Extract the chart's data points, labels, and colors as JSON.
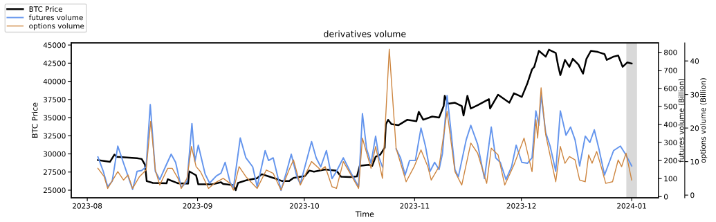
{
  "chart_data": {
    "type": "line",
    "title": "derivatives volume",
    "xlabel": "Time",
    "ylabel": "BTC Price",
    "y2label": "futures volume (Billion)",
    "y3label": "options volume (Billion)",
    "xlim": [
      "2023-07-27T12:00",
      "2024-01-08T12:00"
    ],
    "xticks": [
      {
        "value": "2023-08-01",
        "label": "2023-08"
      },
      {
        "value": "2023-09-01",
        "label": "2023-09"
      },
      {
        "value": "2023-10-01",
        "label": "2023-10"
      },
      {
        "value": "2023-11-01",
        "label": "2023-11"
      },
      {
        "value": "2023-12-01",
        "label": "2023-12"
      },
      {
        "value": "2024-01-01",
        "label": "2024-01"
      }
    ],
    "ylim": [
      23950,
      45300
    ],
    "yticks": [
      25000,
      27500,
      30000,
      32500,
      35000,
      37500,
      40000,
      42500,
      45000
    ],
    "y2lim": [
      -6.5,
      852
    ],
    "y2ticks": [
      0,
      100,
      200,
      300,
      400,
      500,
      600,
      700,
      800
    ],
    "y3lim": [
      -0.8,
      45.4
    ],
    "y3ticks": [
      0,
      10,
      20,
      30,
      40
    ],
    "legend": "top left",
    "grid": false,
    "marker": "none",
    "line_style": "solid",
    "bands": [
      {
        "axis": "x",
        "from": "2023-12-30T12:00",
        "to": "2024-01-02T12:00",
        "color": "#d9d9d9"
      }
    ],
    "series": [
      {
        "name": "BTC Price",
        "color": "#000000",
        "axis": "y",
        "x": [
          "2023-08-04T00:00",
          "2023-08-07T09:00",
          "2023-08-08T15:00",
          "2023-08-09T07:00",
          "2023-08-15T00:00",
          "2023-08-16T07:00",
          "2023-08-17T06:00",
          "2023-08-17T17:00",
          "2023-08-19T11:00",
          "2023-08-23T07:00",
          "2023-08-23T15:00",
          "2023-08-26T12:00",
          "2023-08-29T08:00",
          "2023-08-29T16:00",
          "2023-08-31T14:00",
          "2023-09-01T05:00",
          "2023-09-05T01:00",
          "2023-09-07T14:00",
          "2023-09-08T05:00",
          "2023-09-11T02:00",
          "2023-09-11T17:00",
          "2023-09-12T09:00",
          "2023-09-14T14:00",
          "2023-09-17T18:00",
          "2023-09-19T01:00",
          "2023-09-20T23:00",
          "2023-09-22T21:00",
          "2023-09-24T19:00",
          "2023-09-26T17:00",
          "2023-09-27T23:00",
          "2023-10-01T04:00",
          "2023-10-02T10:00",
          "2023-10-03T17:00",
          "2023-10-06T21:00",
          "2023-10-10T01:00",
          "2023-10-11T08:00",
          "2023-10-13T21:00",
          "2023-10-15T19:00",
          "2023-10-16T14:00",
          "2023-10-19T03:00",
          "2023-10-20T02:00",
          "2023-10-21T01:00",
          "2023-10-22T08:00",
          "2023-10-23T14:00",
          "2023-10-23T22:00",
          "2023-10-24T13:00",
          "2023-10-25T12:00",
          "2023-10-27T10:00",
          "2023-10-29T23:00",
          "2023-11-01T12:00",
          "2023-11-02T04:00",
          "2023-11-03T10:00",
          "2023-11-05T23:00",
          "2023-11-07T21:00",
          "2023-11-09T04:00",
          "2023-11-09T11:00",
          "2023-11-10T10:00",
          "2023-11-12T08:00",
          "2023-11-14T06:00",
          "2023-11-14T18:00",
          "2023-11-15T20:00",
          "2023-11-16T19:00",
          "2023-11-18T17:00",
          "2023-11-21T21:00",
          "2023-11-22T05:00",
          "2023-11-24T11:00",
          "2023-11-27T15:00",
          "2023-11-28T22:00",
          "2023-12-01T03:00",
          "2023-12-02T17:00",
          "2023-12-04T00:00",
          "2023-12-04T15:00",
          "2023-12-05T22:00",
          "2023-12-07T20:00",
          "2023-12-08T18:00",
          "2023-12-10T16:00",
          "2023-12-11T08:00",
          "2023-12-11T23:00",
          "2023-12-13T06:00",
          "2023-12-14T12:00",
          "2023-12-15T11:00",
          "2023-12-17T01:00",
          "2023-12-18T08:00",
          "2023-12-19T07:00",
          "2023-12-20T13:00",
          "2023-12-22T11:00",
          "2023-12-24T09:00",
          "2023-12-25T00:00",
          "2023-12-26T22:00",
          "2023-12-28T05:00",
          "2023-12-29T11:00",
          "2023-12-30T18:00",
          "2024-01-01T00:00"
        ],
        "values": [
          29150,
          28900,
          29900,
          29600,
          29400,
          29300,
          28500,
          26250,
          26000,
          25950,
          26500,
          25950,
          25900,
          27600,
          27050,
          25800,
          25800,
          26100,
          25850,
          25700,
          25000,
          26000,
          26350,
          26650,
          27200,
          26900,
          26600,
          26250,
          26250,
          26700,
          26950,
          27700,
          27550,
          27850,
          27700,
          26850,
          26800,
          26900,
          28350,
          28500,
          28350,
          29600,
          29900,
          30850,
          34050,
          34700,
          34100,
          33950,
          34700,
          34500,
          35800,
          34700,
          35150,
          35000,
          36600,
          38000,
          36900,
          37050,
          36600,
          35300,
          38000,
          36250,
          36700,
          37550,
          36250,
          38150,
          37050,
          38350,
          37850,
          39750,
          41650,
          42000,
          44200,
          43400,
          44350,
          43900,
          42150,
          40850,
          42950,
          42000,
          43100,
          42300,
          41050,
          43100,
          44200,
          44050,
          43750,
          42950,
          43400,
          43550,
          42000,
          42600,
          42450
        ]
      },
      {
        "name": "futures volume",
        "color": "#6495ed",
        "axis": "y2",
        "x": [
          "2023-08-04T00:00",
          "2023-08-05T12:00",
          "2023-08-06T18:00",
          "2023-08-08T00:00",
          "2023-08-09T14:00",
          "2023-08-11T05:00",
          "2023-08-13T18:00",
          "2023-08-15T00:00",
          "2023-08-16T07:00",
          "2023-08-17T13:00",
          "2023-08-18T17:00",
          "2023-08-20T03:00",
          "2023-08-21T09:00",
          "2023-08-22T23:00",
          "2023-08-24T14:00",
          "2023-08-25T20:00",
          "2023-08-27T10:00",
          "2023-08-29T01:00",
          "2023-08-30T10:00",
          "2023-08-31T06:00",
          "2023-09-01T05:00",
          "2023-09-03T03:00",
          "2023-09-04T09:00",
          "2023-09-06T07:00",
          "2023-09-07T14:00",
          "2023-09-08T18:00",
          "2023-09-10T03:00",
          "2023-09-11T02:00",
          "2023-09-13T00:00",
          "2023-09-14T14:00",
          "2023-09-16T12:00",
          "2023-09-17T18:00",
          "2023-09-20T00:00",
          "2023-09-20T23:00",
          "2023-09-22T06:00",
          "2023-09-24T11:00",
          "2023-09-26T01:00",
          "2023-09-27T08:00",
          "2023-09-28T22:00",
          "2023-09-29T21:00",
          "2023-10-03T01:00",
          "2023-10-04T08:00",
          "2023-10-05T15:00",
          "2023-10-07T05:00",
          "2023-10-08T19:00",
          "2023-10-10T01:00",
          "2023-10-11T23:00",
          "2023-10-13T21:00",
          "2023-10-16T06:00",
          "2023-10-17T08:00",
          "2023-10-18T12:00",
          "2023-10-19T18:00",
          "2023-10-21T01:00",
          "2023-10-22T00:00",
          "2023-10-22T23:00",
          "2023-10-24T21:00",
          "2023-10-26T19:00",
          "2023-10-28T01:00",
          "2023-10-29T08:00",
          "2023-10-30T14:00",
          "2023-11-01T05:00",
          "2023-11-02T19:00",
          "2023-11-04T01:00",
          "2023-11-05T08:00",
          "2023-11-06T15:00",
          "2023-11-07T21:00",
          "2023-11-08T20:00",
          "2023-11-10T03:00",
          "2023-11-11T01:00",
          "2023-11-12T08:00",
          "2023-11-13T07:00",
          "2023-11-15T12:00",
          "2023-11-16T19:00",
          "2023-11-18T17:00",
          "2023-11-20T15:00",
          "2023-11-22T13:00",
          "2023-11-23T19:00",
          "2023-11-25T02:00",
          "2023-11-26T16:00",
          "2023-11-28T06:00",
          "2023-11-29T13:00",
          "2023-12-01T03:00",
          "2023-12-02T17:00",
          "2023-12-04T00:00",
          "2023-12-05T02:00",
          "2023-12-05T22:00",
          "2023-12-06T13:00",
          "2023-12-07T20:00",
          "2023-12-09T02:00",
          "2023-12-10T16:00",
          "2023-12-11T23:00",
          "2023-12-13T13:00",
          "2023-12-14T20:00",
          "2023-12-16T02:00",
          "2023-12-17T09:00",
          "2023-12-18T23:00",
          "2023-12-20T06:00",
          "2023-12-21T12:00",
          "2023-12-22T19:00",
          "2023-12-24T09:00",
          "2023-12-26T22:00",
          "2023-12-28T20:00",
          "2023-12-30T03:00",
          "2024-01-01T00:00"
        ],
        "values": [
          220,
          140,
          55,
          85,
          280,
          185,
          40,
          140,
          145,
          165,
          510,
          140,
          95,
          165,
          235,
          190,
          50,
          85,
          405,
          195,
          285,
          125,
          75,
          115,
          130,
          190,
          80,
          50,
          325,
          215,
          165,
          55,
          255,
          200,
          215,
          35,
          140,
          235,
          110,
          70,
          305,
          215,
          165,
          255,
          100,
          140,
          215,
          140,
          55,
          460,
          265,
          185,
          335,
          215,
          165,
          null,
          265,
          215,
          120,
          200,
          200,
          380,
          280,
          140,
          190,
          150,
          240,
          560,
          395,
          150,
          110,
          315,
          395,
          290,
          100,
          385,
          215,
          190,
          95,
          165,
          285,
          190,
          185,
          215,
          475,
          395,
          565,
          355,
          280,
          140,
          475,
          340,
          385,
          315,
          170,
          335,
          300,
          370,
          265,
          120,
          255,
          280,
          240,
          170
        ]
      },
      {
        "name": "options volume",
        "color": "#cd853f",
        "axis": "y3",
        "x": [
          "2023-08-04T00:00",
          "2023-08-05T18:00",
          "2023-08-06T18:00",
          "2023-08-09T14:00",
          "2023-08-11T05:00",
          "2023-08-12T11:00",
          "2023-08-13T18:00",
          "2023-08-15T16:00",
          "2023-08-17T13:00",
          "2023-08-18T20:00",
          "2023-08-20T03:00",
          "2023-08-21T09:00",
          "2023-08-23T15:00",
          "2023-08-24T21:00",
          "2023-08-26T12:00",
          "2023-08-27T10:00",
          "2023-08-29T01:00",
          "2023-08-30T07:00",
          "2023-08-31T14:00",
          "2023-09-01T20:00",
          "2023-09-04T02:00",
          "2023-09-05T16:00",
          "2023-09-08T05:00",
          "2023-09-10T03:00",
          "2023-09-11T02:00",
          "2023-09-12T16:00",
          "2023-09-14T14:00",
          "2023-09-17T18:00",
          "2023-09-20T08:00",
          "2023-09-22T06:00",
          "2023-09-24T11:00",
          "2023-09-26T17:00",
          "2023-09-27T23:00",
          "2023-09-29T21:00",
          "2023-10-03T01:00",
          "2023-10-05T15:00",
          "2023-10-06T21:00",
          "2023-10-08T19:00",
          "2023-10-10T01:00",
          "2023-10-11T23:00",
          "2023-10-13T21:00",
          "2023-10-16T06:00",
          "2023-10-17T08:00",
          "2023-10-19T18:00",
          "2023-10-21T01:00",
          "2023-10-22T23:00",
          "2023-10-24T21:00",
          "2023-10-26T19:00",
          "2023-10-29T15:00",
          "2023-10-31T21:00",
          "2023-11-02T19:00",
          "2023-11-04T17:00",
          "2023-11-05T16:00",
          "2023-11-07T21:00",
          "2023-11-10T03:00",
          "2023-11-12T08:00",
          "2023-11-14T06:00",
          "2023-11-16T19:00",
          "2023-11-18T17:00",
          "2023-11-21T06:00",
          "2023-11-22T13:00",
          "2023-11-24T11:00",
          "2023-11-26T08:00",
          "2023-11-28T22:00",
          "2023-12-01T18:00",
          "2023-12-04T00:00",
          "2023-12-05T02:00",
          "2023-12-05T14:00",
          "2023-12-06T13:00",
          "2023-12-07T20:00",
          "2023-12-09T18:00",
          "2023-12-10T16:00",
          "2023-12-11T23:00",
          "2023-12-13T06:00",
          "2023-12-14T12:00",
          "2023-12-16T02:00",
          "2023-12-17T09:00",
          "2023-12-18T23:00",
          "2023-12-19T22:00",
          "2023-12-20T21:00",
          "2023-12-22T04:00",
          "2023-12-23T10:00",
          "2023-12-24T17:00",
          "2023-12-26T15:00",
          "2023-12-28T05:00",
          "2023-12-29T04:00",
          "2023-12-30T10:00",
          "2024-01-01T00:00"
        ],
        "values": [
          8.0,
          5.5,
          2.0,
          7.0,
          4.5,
          6.0,
          2.0,
          5.5,
          7.5,
          22.0,
          7.5,
          3.0,
          8.0,
          8.0,
          5.0,
          2.0,
          5.0,
          14.5,
          8.5,
          7.0,
          2.0,
          3.5,
          5.0,
          3.5,
          1.5,
          8.5,
          5.5,
          2.0,
          7.5,
          6.5,
          1.5,
          7.5,
          10.5,
          3.0,
          10.0,
          7.5,
          8.5,
          2.5,
          2.0,
          10.0,
          6.5,
          2.0,
          17.0,
          8.0,
          14.5,
          5.0,
          43.5,
          14.0,
          4.0,
          8.5,
          13.5,
          8.5,
          4.5,
          8.5,
          25.0,
          7.0,
          3.0,
          15.5,
          12.5,
          3.5,
          14.0,
          12.0,
          3.0,
          9.0,
          17.0,
          7.0,
          22.5,
          17.0,
          32.0,
          18.0,
          8.5,
          4.0,
          14.5,
          9.5,
          11.5,
          10.5,
          4.5,
          4.0,
          12.0,
          9.5,
          13.0,
          8.5,
          3.5,
          4.0,
          10.5,
          8.5,
          12.5,
          4.5
        ]
      }
    ]
  }
}
